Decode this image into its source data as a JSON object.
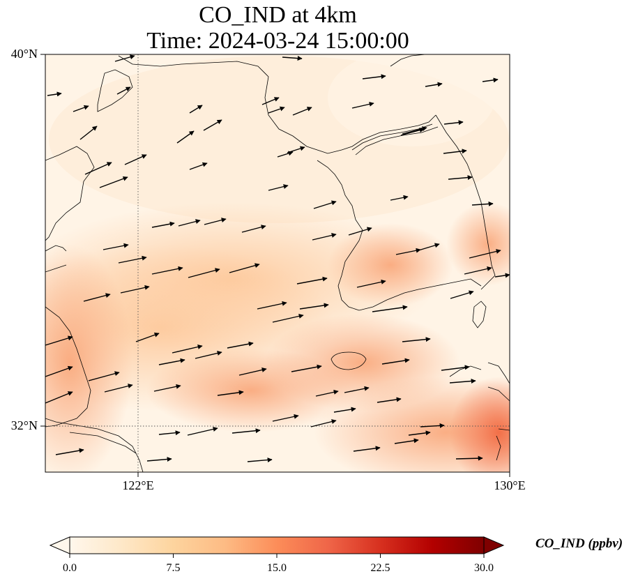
{
  "title": {
    "line1": "CO_IND at 4km",
    "line2": "Time: 2024-03-24 15:00:00"
  },
  "axes": {
    "lat_labels": [
      "40°N",
      "32°N"
    ],
    "lon_labels": [
      "122°E",
      "130°E"
    ],
    "lon_range": [
      120,
      130
    ],
    "lat_range": [
      31,
      40
    ],
    "gridlines": "dotted at 122°E and 32°N"
  },
  "colorbar": {
    "label": "CO_IND (ppbv)",
    "ticks": [
      "0.0",
      "7.5",
      "15.0",
      "22.5",
      "30.0"
    ],
    "range": [
      0,
      30
    ],
    "extend": "both",
    "colormap": "OrRd",
    "colors": [
      "#fff7ec",
      "#fee8c8",
      "#fdd49e",
      "#fdbb84",
      "#fc8d59",
      "#ef6548",
      "#d7301f",
      "#b30000",
      "#7f0000"
    ]
  },
  "field": {
    "description_colors": {
      "low": "#fff4e6",
      "mid": "#fdd0a2",
      "high": "#f26b43"
    }
  }
}
